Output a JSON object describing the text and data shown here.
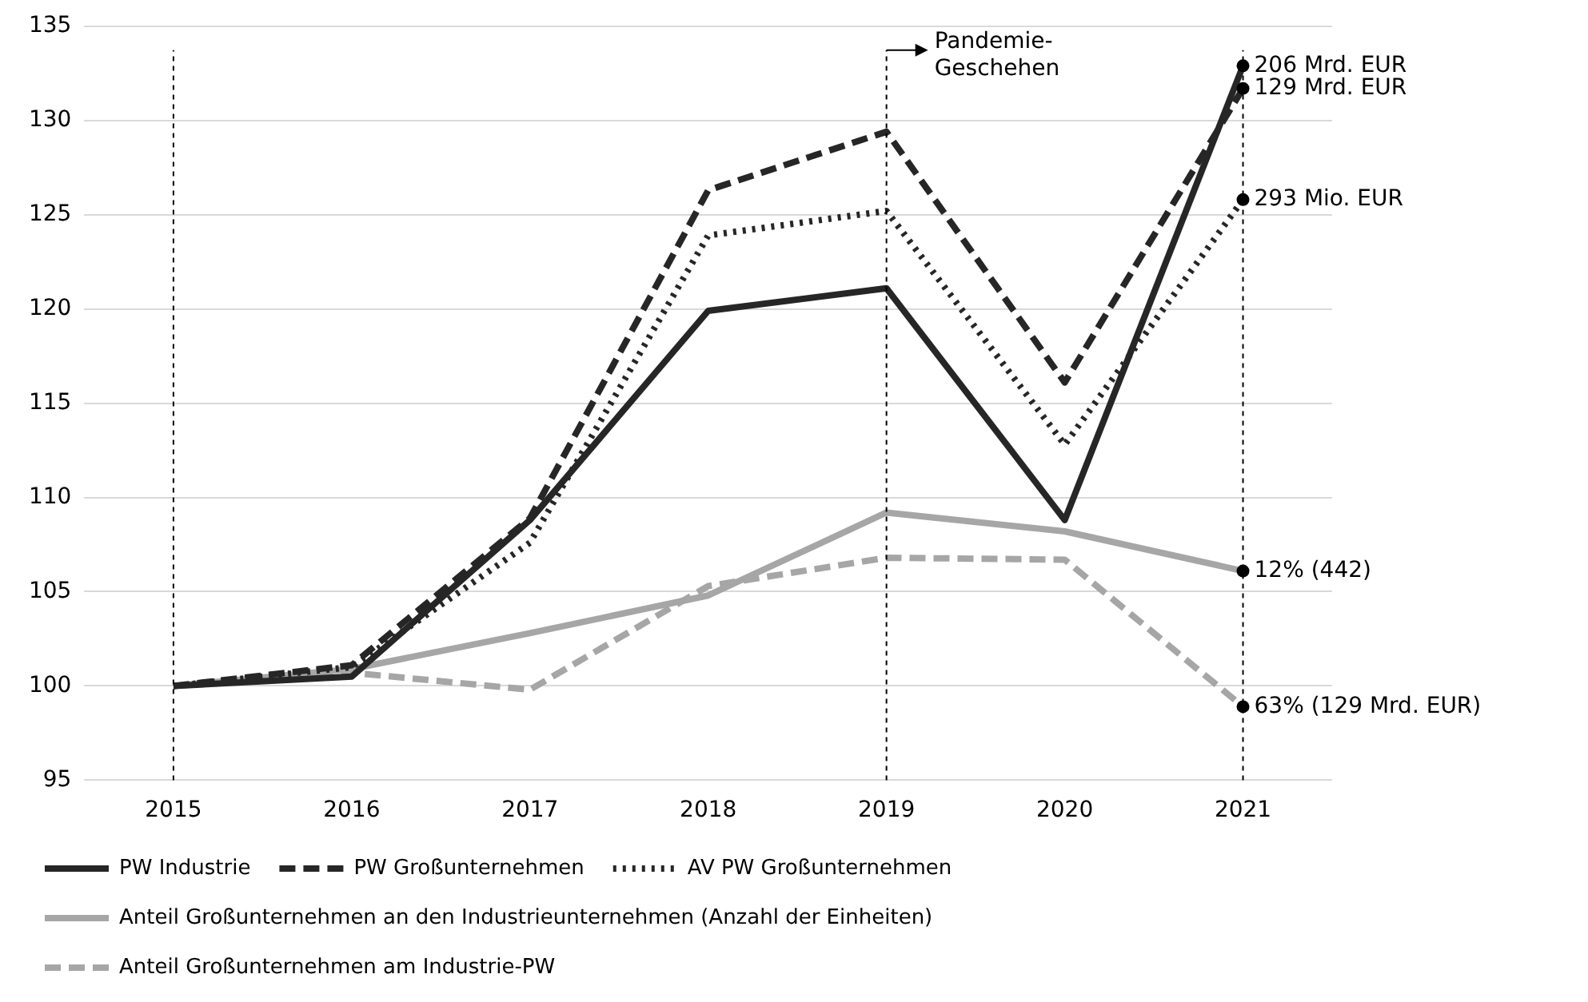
{
  "chart_data": {
    "type": "line",
    "categories": [
      "2015",
      "2016",
      "2017",
      "2018",
      "2019",
      "2020",
      "2021"
    ],
    "series": [
      {
        "name": "PW Industrie",
        "color": "#262626",
        "line_style": "solid",
        "values": [
          100,
          100.5,
          108.8,
          119.9,
          121.1,
          108.8,
          132.9
        ]
      },
      {
        "name": "PW Großunternehmen",
        "color": "#262626",
        "line_style": "dashed",
        "values": [
          100,
          101.1,
          108.9,
          126.3,
          129.4,
          116.1,
          131.7
        ]
      },
      {
        "name": "AV PW Großunternehmen",
        "color": "#262626",
        "line_style": "dotted",
        "values": [
          100,
          101,
          107.6,
          123.9,
          125.2,
          112.8,
          125.8
        ]
      },
      {
        "name": "Anteil Großunternehmen an den Industrieunternehmen (Anzahl der Einheiten)",
        "color": "#a6a6a6",
        "line_style": "solid",
        "values": [
          100,
          100.9,
          102.8,
          104.8,
          109.2,
          108.2,
          106.1
        ]
      },
      {
        "name": "Anteil Großunternehmen am Industrie-PW",
        "color": "#a6a6a6",
        "line_style": "dashed",
        "values": [
          100,
          100.7,
          99.8,
          105.3,
          106.8,
          106.7,
          98.9
        ]
      }
    ],
    "ylim": [
      95,
      135
    ],
    "yticks": [
      95,
      100,
      105,
      110,
      115,
      120,
      125,
      130,
      135
    ],
    "grid": "y",
    "legend": "bottom",
    "ref_lines": [
      {
        "axis": "x",
        "value": "2015",
        "label": null
      },
      {
        "axis": "x",
        "value": "2019",
        "label": "Pandemie-\nGeschehen"
      },
      {
        "axis": "x",
        "value": "2021",
        "label": null
      }
    ],
    "annotations": [
      {
        "text": "206 Mrd. EUR",
        "x": "2021",
        "y": 132.9
      },
      {
        "text": "129 Mrd. EUR",
        "x": "2021",
        "y": 131.7
      },
      {
        "text": "293 Mio. EUR",
        "x": "2021",
        "y": 125.8
      },
      {
        "text": "12% (442)",
        "x": "2021",
        "y": 106.1
      },
      {
        "text": "63% (129 Mrd. EUR)",
        "x": "2021",
        "y": 98.9
      }
    ]
  }
}
